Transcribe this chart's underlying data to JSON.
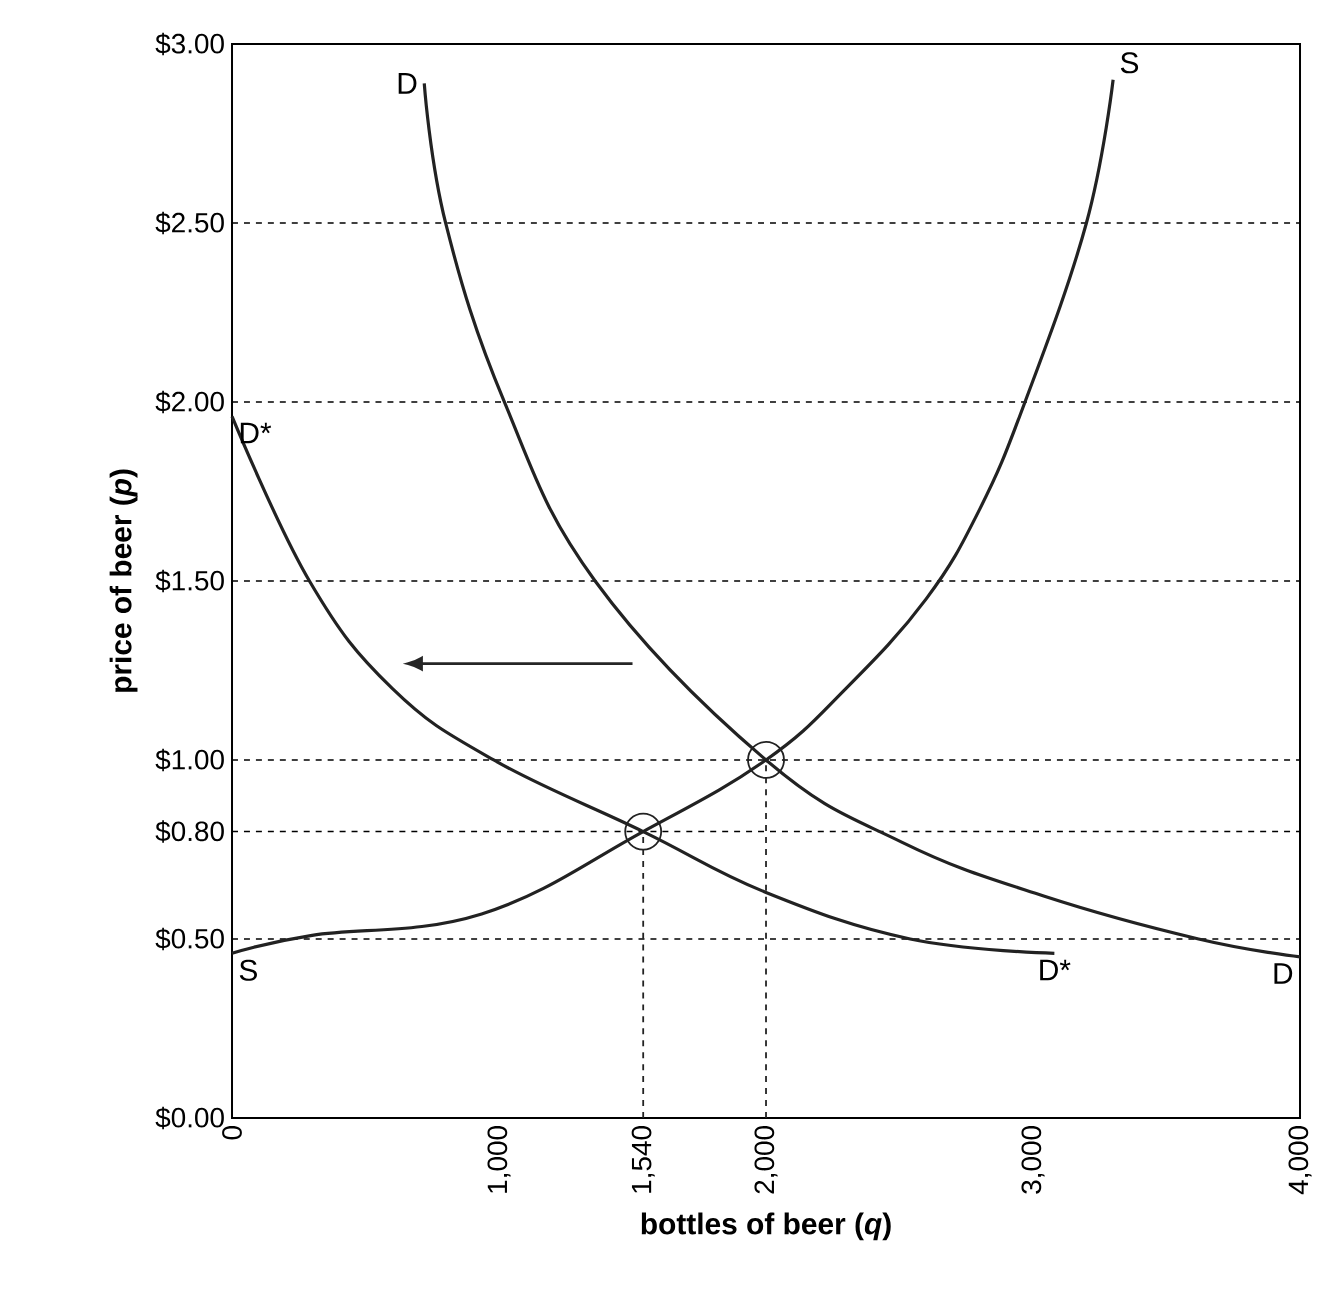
{
  "chart_data": {
    "type": "line",
    "xlabel": "bottles of beer (*q*)",
    "ylabel": "price of beer (*p*)",
    "xlim": [
      0,
      4000
    ],
    "ylim": [
      0,
      3
    ],
    "xticks": [
      {
        "value": 0,
        "label": "0"
      },
      {
        "value": 1000,
        "label": "1,000"
      },
      {
        "value": 1540,
        "label": "1,540"
      },
      {
        "value": 2000,
        "label": "2,000"
      },
      {
        "value": 3000,
        "label": "3,000"
      },
      {
        "value": 4000,
        "label": "4,000"
      }
    ],
    "yticks": [
      {
        "value": 0,
        "label": "$0.00"
      },
      {
        "value": 0.5,
        "label": "$0.50"
      },
      {
        "value": 0.8,
        "label": "$0.80"
      },
      {
        "value": 1,
        "label": "$1.00"
      },
      {
        "value": 1.5,
        "label": "$1.50"
      },
      {
        "value": 2,
        "label": "$2.00"
      },
      {
        "value": 2.5,
        "label": "$2.50"
      },
      {
        "value": 3,
        "label": "$3.00"
      }
    ],
    "grid": "y",
    "marker": "none",
    "line_style": "solid",
    "series": [
      {
        "name": "S",
        "color": "#222222",
        "x": [
          0,
          300,
          935,
          1540,
          2000,
          2300,
          2600,
          2800,
          2970,
          3200,
          3300
        ],
        "values": [
          0.46,
          0.51,
          0.57,
          0.8,
          1.0,
          1.2,
          1.45,
          1.7,
          2.0,
          2.5,
          2.9
        ]
      },
      {
        "name": "D",
        "color": "#222222",
        "x": [
          720,
          800,
          1020,
          1360,
          2000,
          2510,
          3040,
          3620,
          4000
        ],
        "values": [
          2.89,
          2.5,
          2.0,
          1.5,
          1.0,
          0.77,
          0.62,
          0.5,
          0.45
        ]
      },
      {
        "name": "D*",
        "color": "#222222",
        "x": [
          0,
          290,
          600,
          980,
          1540,
          2000,
          2540,
          3080
        ],
        "values": [
          1.96,
          1.5,
          1.2,
          1.0,
          0.8,
          0.63,
          0.5,
          0.46
        ]
      },
      {
        "type": "scatter",
        "marker": "circle",
        "line_style": "dashed",
        "color": "#222222",
        "x": [
          1540,
          2000
        ],
        "values": [
          0.8,
          1.0
        ],
        "errors": [
          [
            0,
            0.8
          ],
          [
            0,
            1.0
          ]
        ]
      }
    ]
  }
}
